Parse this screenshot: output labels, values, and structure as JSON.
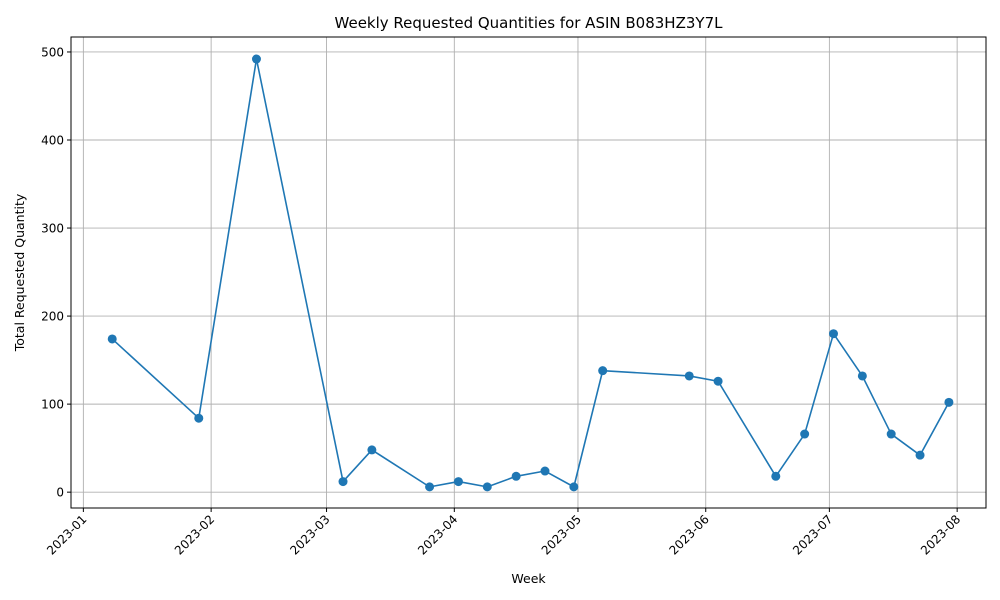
{
  "chart_data": {
    "type": "line",
    "title": "Weekly Requested Quantities for ASIN B083HZ3Y7L",
    "xlabel": "Week",
    "ylabel": "Total Requested Quantity",
    "color": "#1f77b4",
    "grid": true,
    "marker": "circle",
    "xlim": [
      "2022-12-29",
      "2023-08-08"
    ],
    "ylim": [
      -18,
      517
    ],
    "x_ticks": [
      "2023-01",
      "2023-02",
      "2023-03",
      "2023-04",
      "2023-05",
      "2023-06",
      "2023-07",
      "2023-08"
    ],
    "x_tick_dates": [
      "2023-01-01",
      "2023-02-01",
      "2023-03-01",
      "2023-04-01",
      "2023-05-01",
      "2023-06-01",
      "2023-07-01",
      "2023-08-01"
    ],
    "y_ticks": [
      0,
      100,
      200,
      300,
      400,
      500
    ],
    "series": [
      {
        "x": [
          "2023-01-08",
          "2023-01-29",
          "2023-02-12",
          "2023-03-05",
          "2023-03-12",
          "2023-03-26",
          "2023-04-02",
          "2023-04-09",
          "2023-04-16",
          "2023-04-23",
          "2023-04-30",
          "2023-05-07",
          "2023-05-28",
          "2023-06-04",
          "2023-06-18",
          "2023-06-25",
          "2023-07-02",
          "2023-07-09",
          "2023-07-16",
          "2023-07-23",
          "2023-07-30"
        ],
        "y": [
          174,
          84,
          492,
          12,
          48,
          6,
          12,
          6,
          18,
          24,
          6,
          138,
          132,
          126,
          18,
          66,
          180,
          132,
          66,
          42,
          102
        ]
      }
    ]
  }
}
